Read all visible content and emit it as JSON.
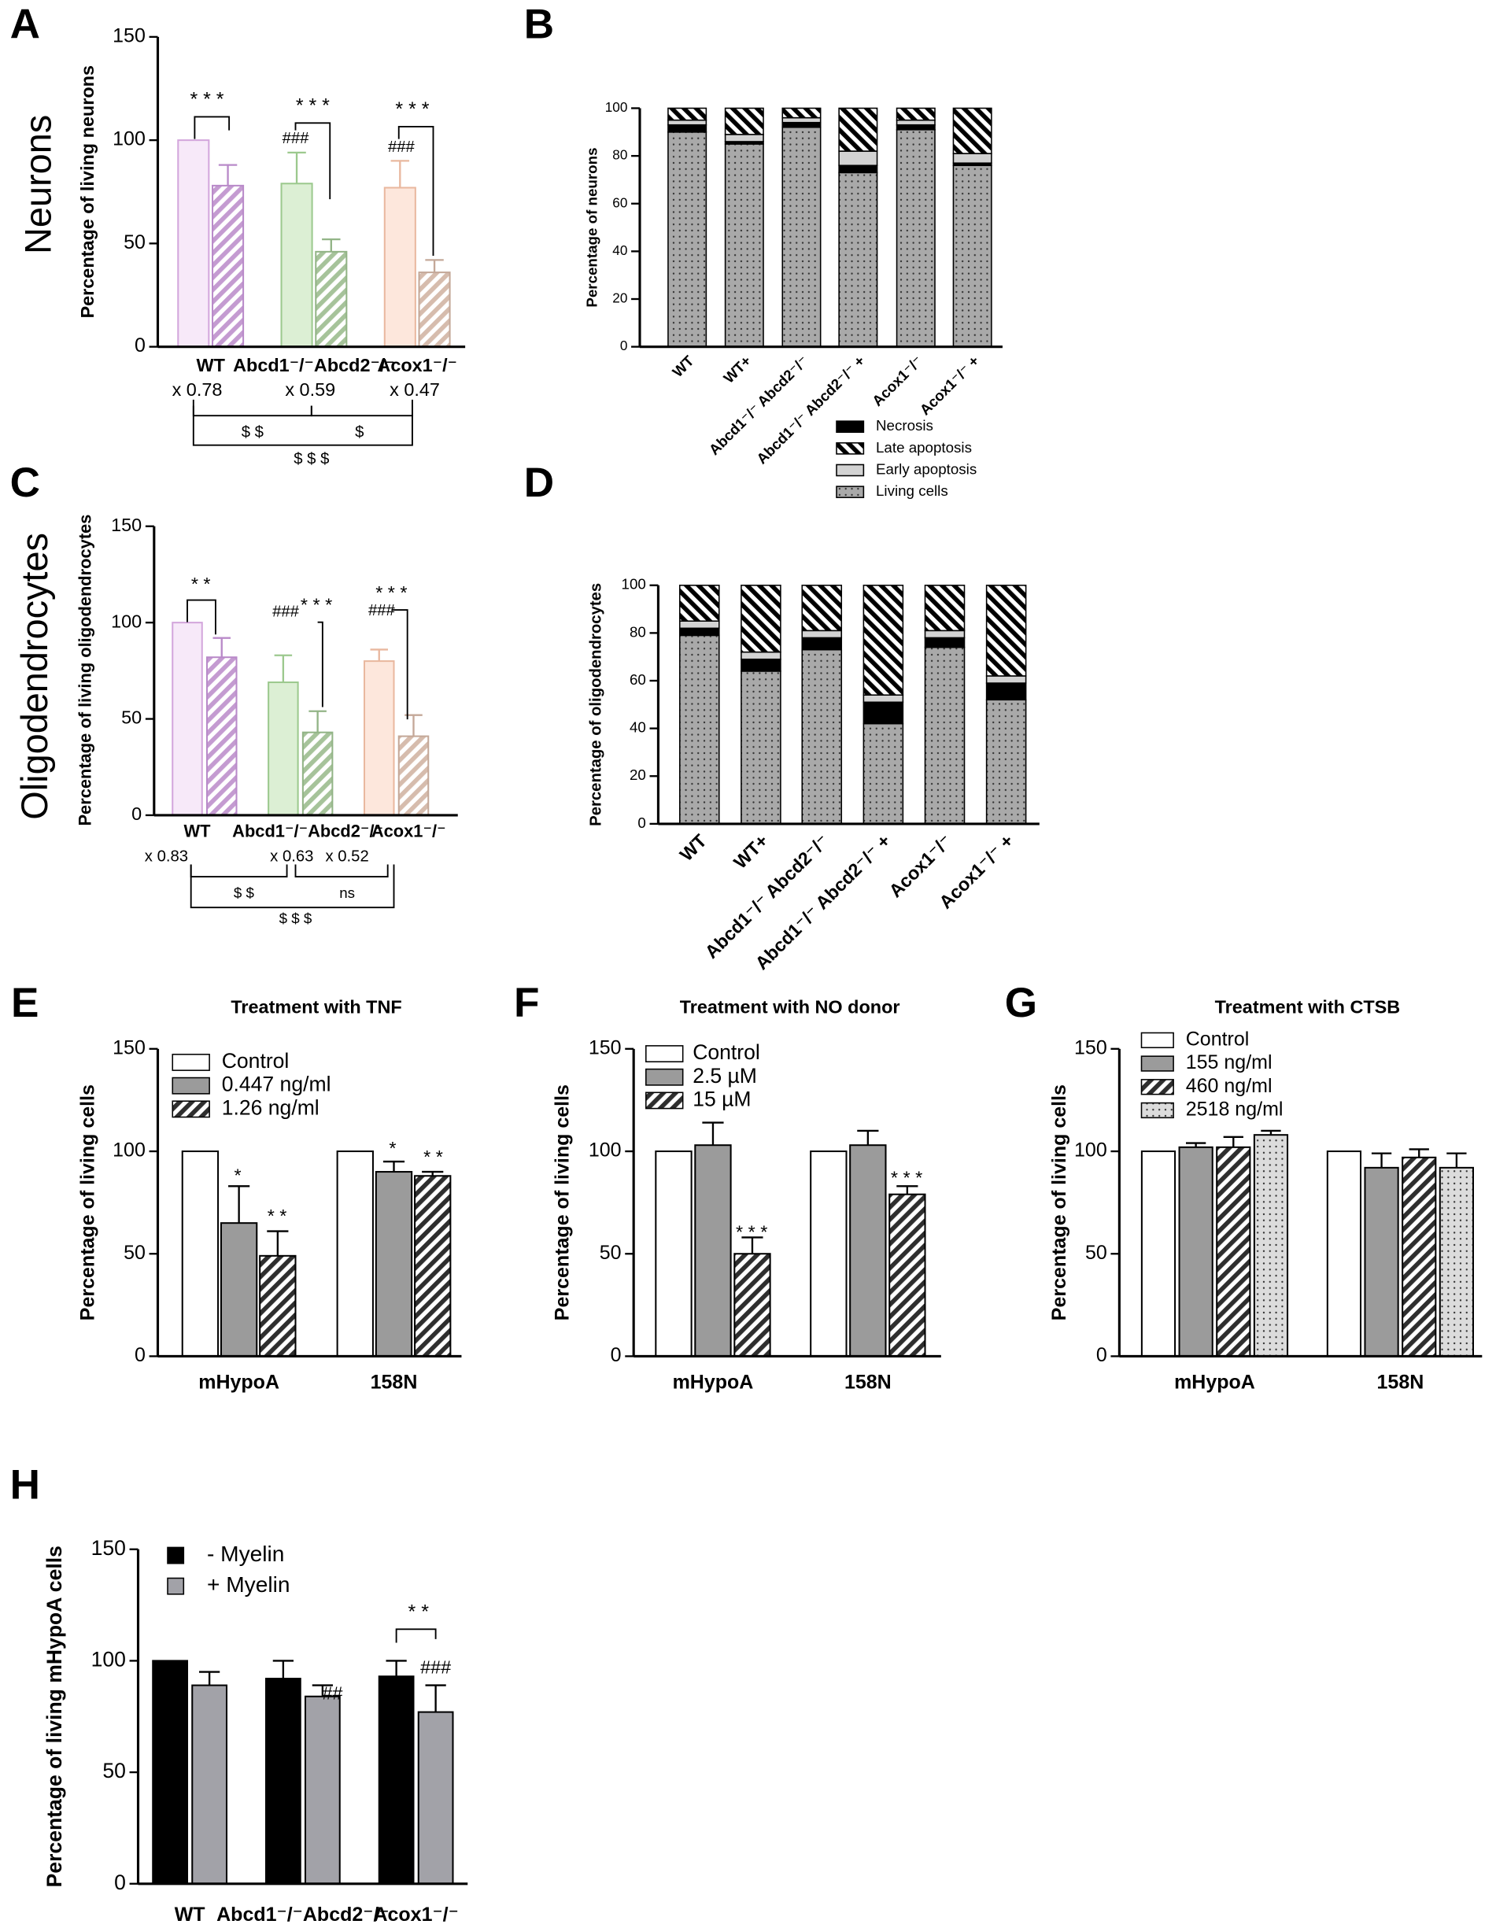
{
  "chart_data": [
    {
      "panel": "A",
      "row_label": "Neurons",
      "type": "bar",
      "ylabel": "Percentage of living neurons",
      "categories": [
        "WT",
        "Abcd1⁻/⁻Abcd2⁻/⁻",
        "Acox1⁻/⁻"
      ],
      "ylim": [
        0,
        150
      ],
      "yticks": [
        0,
        50,
        100,
        150
      ],
      "series": [
        {
          "colors": [
            "#f7e9f9",
            "#dcefd4",
            "#fde7dc"
          ],
          "edgecolors": [
            "#d3a6dc",
            "#9cc98e",
            "#e9b89f"
          ],
          "values": [
            100,
            79,
            77
          ],
          "errors": [
            null,
            15,
            13
          ]
        },
        {
          "colors": [
            "#c49bd1",
            "#a6c39a",
            "#d6bcad"
          ],
          "edgecolors": [
            "#b98ac9",
            "#92b486",
            "#c4a898"
          ],
          "pattern": "hatch",
          "values": [
            78,
            46,
            36
          ],
          "errors": [
            10,
            6,
            6
          ]
        }
      ],
      "fold_labels": [
        "x 0.78",
        "x 0.59",
        "x 0.47"
      ],
      "annotations": [
        "* * *",
        "* * *",
        "* * *",
        "###",
        "###",
        "$ $",
        "$",
        "$ $ $"
      ]
    },
    {
      "panel": "B",
      "type": "stacked_bar",
      "ylabel": "Percentage of neurons",
      "categories": [
        "WT",
        "WT+",
        "Abcd1⁻/⁻ Abcd2⁻/⁻",
        "Abcd1⁻/⁻ Abcd2⁻/⁻ +",
        "Acox1⁻/⁻",
        "Acox1⁻/⁻ +"
      ],
      "ylim": [
        0,
        100
      ],
      "yticks": [
        0,
        20,
        40,
        60,
        80,
        100
      ],
      "series": [
        {
          "name": "Living cells",
          "color": "#a9a9a9",
          "pattern": "dots",
          "values": [
            90,
            85,
            92,
            73,
            91,
            76
          ]
        },
        {
          "name": "Necrosis",
          "color": "#000000",
          "values": [
            3,
            1,
            2,
            3,
            2,
            1
          ]
        },
        {
          "name": "Early apoptosis",
          "color": "#d3d3d3",
          "values": [
            2,
            3,
            2,
            6,
            2,
            4
          ]
        },
        {
          "name": "Late apoptosis",
          "color": "#000000",
          "pattern": "backhatch",
          "values": [
            5,
            11,
            4,
            18,
            5,
            19
          ]
        }
      ]
    },
    {
      "panel": "C",
      "row_label": "Oligodendrocytes",
      "type": "bar",
      "ylabel": "Percentage of living oligodendrocytes",
      "categories": [
        "WT",
        "Abcd1⁻/⁻Abcd2⁻/⁻",
        "Acox1⁻/⁻"
      ],
      "ylim": [
        0,
        150
      ],
      "yticks": [
        0,
        50,
        100,
        150
      ],
      "series": [
        {
          "colors": [
            "#f7e9f9",
            "#dcefd4",
            "#fde7dc"
          ],
          "edgecolors": [
            "#d3a6dc",
            "#9cc98e",
            "#e9b89f"
          ],
          "values": [
            100,
            69,
            80
          ],
          "errors": [
            null,
            14,
            6
          ]
        },
        {
          "colors": [
            "#c49bd1",
            "#a6c39a",
            "#d6bcad"
          ],
          "edgecolors": [
            "#b98ac9",
            "#92b486",
            "#c4a898"
          ],
          "pattern": "hatch",
          "values": [
            82,
            43,
            41
          ],
          "errors": [
            10,
            11,
            11
          ]
        }
      ],
      "fold_labels": [
        "x 0.83",
        "x 0.63",
        "x 0.52"
      ],
      "annotations": [
        "* *",
        "* * *",
        "* * *",
        "###",
        "###",
        "$ $",
        "ns",
        "$ $ $"
      ]
    },
    {
      "panel": "D",
      "type": "stacked_bar",
      "ylabel": "Percentage of oligodendrocytes",
      "categories": [
        "WT",
        "WT+",
        "Abcd1⁻/⁻ Abcd2⁻/⁻",
        "Abcd1⁻/⁻ Abcd2⁻/⁻ +",
        "Acox1⁻/⁻",
        "Acox1⁻/⁻ +"
      ],
      "ylim": [
        0,
        100
      ],
      "yticks": [
        0,
        20,
        40,
        60,
        80,
        100
      ],
      "series": [
        {
          "color": "#a9a9a9",
          "pattern": "dots",
          "values": [
            79,
            64,
            73,
            42,
            74,
            52
          ]
        },
        {
          "color": "#000000",
          "values": [
            3,
            5,
            5,
            9,
            4,
            7
          ]
        },
        {
          "color": "#d3d3d3",
          "values": [
            3,
            3,
            3,
            3,
            3,
            3
          ]
        },
        {
          "color": "#000000",
          "pattern": "backhatch",
          "values": [
            15,
            28,
            19,
            46,
            19,
            38
          ]
        }
      ]
    },
    {
      "panel": "E",
      "type": "bar",
      "title": "Treatment with TNF",
      "ylabel": "Percentage of living cells",
      "categories": [
        "mHypoA",
        "158N"
      ],
      "ylim": [
        0,
        150
      ],
      "yticks": [
        0,
        50,
        100,
        150
      ],
      "series": [
        {
          "name": "Control",
          "color": "#ffffff",
          "values": [
            100,
            100
          ],
          "errors": [
            null,
            null
          ]
        },
        {
          "name": "0.447 ng/ml",
          "color": "#9b9b9b",
          "values": [
            65,
            90
          ],
          "errors": [
            18,
            5
          ]
        },
        {
          "name": "1.26 ng/ml",
          "color": "#2e2e2e",
          "pattern": "hatch",
          "values": [
            49,
            88
          ],
          "errors": [
            12,
            2
          ]
        }
      ],
      "annotations": [
        "*",
        "* *",
        "*",
        "* *"
      ]
    },
    {
      "panel": "F",
      "type": "bar",
      "title": "Treatment with NO donor",
      "ylabel": "Percentage of living cells",
      "categories": [
        "mHypoA",
        "158N"
      ],
      "ylim": [
        0,
        150
      ],
      "yticks": [
        0,
        50,
        100,
        150
      ],
      "series": [
        {
          "name": "Control",
          "color": "#ffffff",
          "values": [
            100,
            100
          ],
          "errors": [
            null,
            null
          ]
        },
        {
          "name": "2.5 µM",
          "color": "#9b9b9b",
          "values": [
            103,
            103
          ],
          "errors": [
            11,
            7
          ]
        },
        {
          "name": "15 µM",
          "color": "#2e2e2e",
          "pattern": "hatch",
          "values": [
            50,
            79
          ],
          "errors": [
            8,
            4
          ]
        }
      ],
      "annotations": [
        "* * *",
        "* * *"
      ]
    },
    {
      "panel": "G",
      "type": "bar",
      "title": "Treatment with CTSB",
      "ylabel": "Percentage of living cells",
      "categories": [
        "mHypoA",
        "158N"
      ],
      "ylim": [
        0,
        150
      ],
      "yticks": [
        0,
        50,
        100,
        150
      ],
      "series": [
        {
          "name": "Control",
          "color": "#ffffff",
          "values": [
            100,
            100
          ],
          "errors": [
            null,
            null
          ]
        },
        {
          "name": "155 ng/ml",
          "color": "#9b9b9b",
          "values": [
            102,
            92
          ],
          "errors": [
            2,
            7
          ]
        },
        {
          "name": "460 ng/ml",
          "color": "#2e2e2e",
          "pattern": "hatch",
          "values": [
            102,
            97
          ],
          "errors": [
            5,
            4
          ]
        },
        {
          "name": "2518 ng/ml",
          "color": "#dcdcdc",
          "pattern": "dots",
          "values": [
            108,
            92
          ],
          "errors": [
            2,
            7
          ]
        }
      ]
    },
    {
      "panel": "H",
      "type": "bar",
      "ylabel": "Percentage of living mHypoA cells",
      "categories": [
        "WT",
        "Abcd1⁻/⁻Abcd2⁻/⁻",
        "Acox1⁻/⁻"
      ],
      "ylim": [
        0,
        150
      ],
      "yticks": [
        0,
        50,
        100,
        150
      ],
      "series": [
        {
          "name": "- Myelin",
          "color": "#000000",
          "values": [
            100,
            92,
            93
          ],
          "errors": [
            null,
            8,
            7
          ]
        },
        {
          "name": "+ Myelin",
          "color": "#a2a2a8",
          "values": [
            89,
            84,
            77
          ],
          "errors": [
            6,
            5,
            12
          ]
        }
      ],
      "annotations": [
        "##",
        "###",
        "* *"
      ]
    }
  ]
}
